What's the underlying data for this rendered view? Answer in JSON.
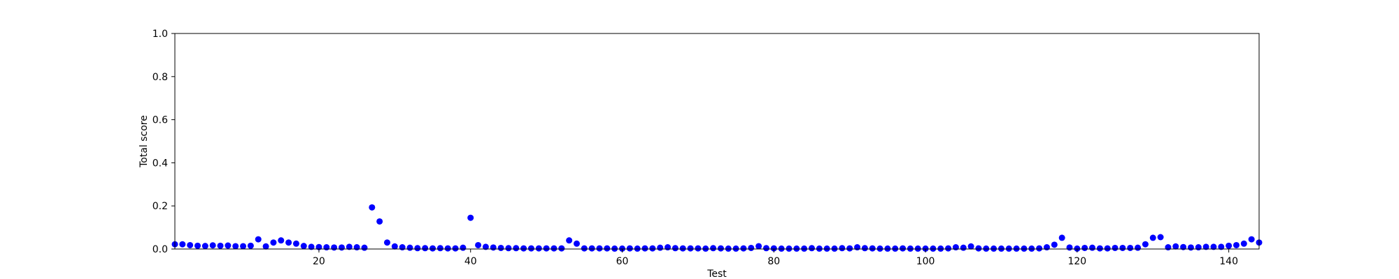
{
  "chart_data": {
    "type": "scatter",
    "title": "",
    "xlabel": "Test",
    "ylabel": "Total score",
    "xlim": [
      1,
      144
    ],
    "ylim": [
      0,
      1.0
    ],
    "xticks": [
      20,
      40,
      60,
      80,
      100,
      120,
      140
    ],
    "yticks": [
      0.0,
      0.2,
      0.4,
      0.6,
      0.8,
      1.0
    ],
    "xtick_labels": [
      "20",
      "40",
      "60",
      "80",
      "100",
      "120",
      "140"
    ],
    "ytick_labels": [
      "0.0",
      "0.2",
      "0.4",
      "0.6",
      "0.8",
      "1.0"
    ],
    "grid": false,
    "marker_color": "#0000ff",
    "series": [
      {
        "x": [
          1,
          2,
          3,
          4,
          5,
          6,
          7,
          8,
          9,
          10,
          11,
          12,
          13,
          14,
          15,
          16,
          17,
          18,
          19,
          20,
          21,
          22,
          23,
          24,
          25,
          26,
          27,
          28,
          29,
          30,
          31,
          32,
          33,
          34,
          35,
          36,
          37,
          38,
          39,
          40,
          41,
          42,
          43,
          44,
          45,
          46,
          47,
          48,
          49,
          50,
          51,
          52,
          53,
          54,
          55,
          56,
          57,
          58,
          59,
          60,
          61,
          62,
          63,
          64,
          65,
          66,
          67,
          68,
          69,
          70,
          71,
          72,
          73,
          74,
          75,
          76,
          77,
          78,
          79,
          80,
          81,
          82,
          83,
          84,
          85,
          86,
          87,
          88,
          89,
          90,
          91,
          92,
          93,
          94,
          95,
          96,
          97,
          98,
          99,
          100,
          101,
          102,
          103,
          104,
          105,
          106,
          107,
          108,
          109,
          110,
          111,
          112,
          113,
          114,
          115,
          116,
          117,
          118,
          119,
          120,
          121,
          122,
          123,
          124,
          125,
          126,
          127,
          128,
          129,
          130,
          131,
          132,
          133,
          134,
          135,
          136,
          137,
          138,
          139,
          140,
          141,
          142,
          143,
          144
        ],
        "y": [
          0.022,
          0.022,
          0.018,
          0.015,
          0.014,
          0.017,
          0.015,
          0.016,
          0.013,
          0.013,
          0.015,
          0.045,
          0.012,
          0.03,
          0.04,
          0.03,
          0.025,
          0.014,
          0.01,
          0.009,
          0.008,
          0.007,
          0.007,
          0.01,
          0.008,
          0.006,
          0.193,
          0.128,
          0.03,
          0.012,
          0.008,
          0.006,
          0.004,
          0.004,
          0.003,
          0.004,
          0.003,
          0.003,
          0.006,
          0.145,
          0.018,
          0.01,
          0.007,
          0.005,
          0.004,
          0.004,
          0.003,
          0.003,
          0.003,
          0.003,
          0.003,
          0.003,
          0.04,
          0.025,
          0.003,
          0.003,
          0.003,
          0.003,
          0.002,
          0.002,
          0.003,
          0.002,
          0.003,
          0.003,
          0.006,
          0.008,
          0.004,
          0.003,
          0.003,
          0.003,
          0.002,
          0.004,
          0.003,
          0.002,
          0.002,
          0.003,
          0.005,
          0.013,
          0.004,
          0.003,
          0.002,
          0.002,
          0.002,
          0.002,
          0.004,
          0.002,
          0.002,
          0.002,
          0.004,
          0.003,
          0.008,
          0.004,
          0.003,
          0.002,
          0.002,
          0.002,
          0.003,
          0.002,
          0.002,
          0.002,
          0.002,
          0.002,
          0.003,
          0.008,
          0.006,
          0.012,
          0.003,
          0.002,
          0.002,
          0.002,
          0.002,
          0.002,
          0.002,
          0.002,
          0.003,
          0.008,
          0.02,
          0.052,
          0.007,
          0.002,
          0.005,
          0.006,
          0.003,
          0.003,
          0.005,
          0.005,
          0.005,
          0.006,
          0.022,
          0.052,
          0.055,
          0.008,
          0.012,
          0.009,
          0.007,
          0.008,
          0.01,
          0.01,
          0.01,
          0.015,
          0.018,
          0.025,
          0.045,
          0.03
        ]
      }
    ]
  }
}
